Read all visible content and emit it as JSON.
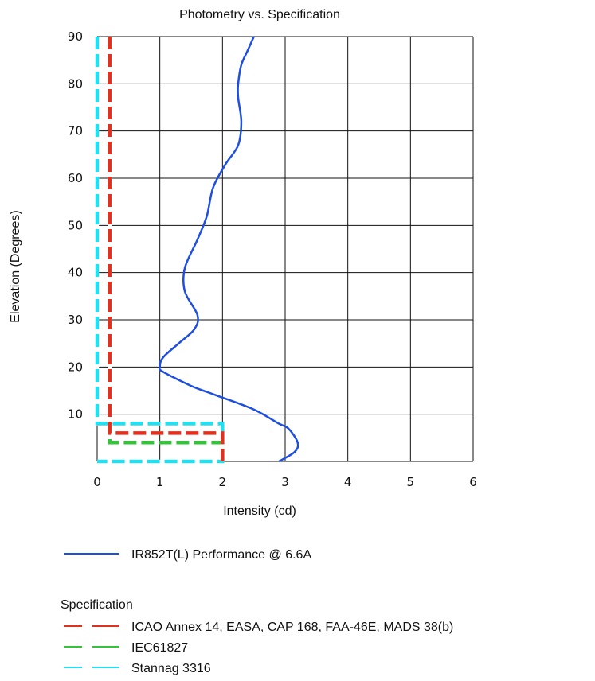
{
  "chart_data": {
    "type": "line",
    "title": "Photometry vs. Specification",
    "xlabel": "Intensity (cd)",
    "ylabel": "Elevation (Degrees)",
    "xlim": [
      0,
      6
    ],
    "ylim": [
      0,
      90
    ],
    "x_ticks": [
      0,
      1,
      2,
      3,
      4,
      5,
      6
    ],
    "y_ticks": [
      10,
      20,
      30,
      40,
      50,
      60,
      70,
      80,
      90
    ],
    "grid": true,
    "legend_position": "bottom",
    "legend_heading": "Specification",
    "series": [
      {
        "name": "IR852T(L) Performance @ 6.6A",
        "color": "#1f4fe0",
        "style": "solid",
        "points": [
          [
            2.9,
            0
          ],
          [
            3.15,
            2
          ],
          [
            3.2,
            4
          ],
          [
            3.05,
            7
          ],
          [
            2.9,
            8
          ],
          [
            2.5,
            11
          ],
          [
            1.9,
            14
          ],
          [
            1.5,
            16
          ],
          [
            1.05,
            19
          ],
          [
            1.0,
            20
          ],
          [
            1.05,
            22
          ],
          [
            1.3,
            25
          ],
          [
            1.55,
            28
          ],
          [
            1.6,
            31
          ],
          [
            1.4,
            36
          ],
          [
            1.4,
            41
          ],
          [
            1.6,
            47
          ],
          [
            1.75,
            52
          ],
          [
            1.85,
            58
          ],
          [
            2.05,
            63
          ],
          [
            2.25,
            67
          ],
          [
            2.3,
            72
          ],
          [
            2.25,
            77
          ],
          [
            2.25,
            80
          ],
          [
            2.3,
            84
          ],
          [
            2.4,
            87
          ],
          [
            2.5,
            90
          ]
        ]
      },
      {
        "name": "ICAO Annex 14, EASA, CAP 168, FAA-46E, MADS 38(b)",
        "color": "#e03020",
        "style": "dashed",
        "points": [
          [
            0.2,
            90
          ],
          [
            0.2,
            6
          ],
          [
            2.0,
            6
          ],
          [
            2.0,
            0
          ]
        ]
      },
      {
        "name": "IEC61827",
        "color": "#33c43a",
        "style": "dashed",
        "points": [
          [
            0.2,
            90
          ],
          [
            0.2,
            4
          ],
          [
            2.0,
            4
          ],
          [
            2.0,
            0
          ]
        ]
      },
      {
        "name": "Stannag 3316",
        "color": "#22e0f0",
        "style": "dashed",
        "points": [
          [
            0,
            90
          ],
          [
            0,
            8
          ],
          [
            2.0,
            8
          ],
          [
            2.0,
            0
          ],
          [
            0,
            0
          ]
        ]
      }
    ]
  }
}
